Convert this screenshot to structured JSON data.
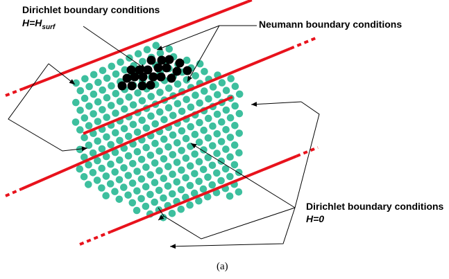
{
  "labels": {
    "dirichlet_top_title": "Dirichlet boundary conditions",
    "dirichlet_top_eq_main": "H=H",
    "dirichlet_top_eq_sub": "surf",
    "neumann_title": "Neumann boundary conditions",
    "dirichlet_bottom_title": "Dirichlet boundary conditions",
    "dirichlet_bottom_eq": "H=0",
    "caption": "(a)"
  },
  "colors": {
    "node_interior": "#3dbf9e",
    "node_dirichlet_surface": "#000000",
    "boundary_line": "#e8121c",
    "annotation": "#000000"
  }
}
